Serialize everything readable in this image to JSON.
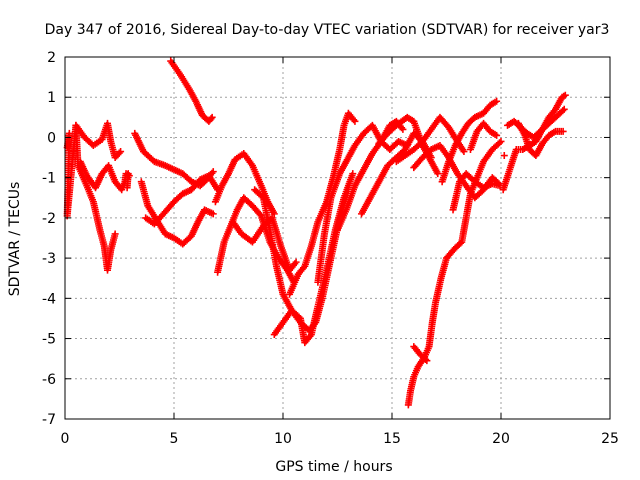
{
  "chart_data": {
    "type": "scatter",
    "title": "Day 347 of 2016, Sidereal Day-to-day VTEC variation (SDTVAR) for receiver yar3",
    "xlabel": "GPS time / hours",
    "ylabel": "SDTVAR / TECUs",
    "xlim": [
      0,
      25
    ],
    "ylim": [
      -7,
      2
    ],
    "xticks": [
      "0",
      "5",
      "10",
      "15",
      "20",
      "25"
    ],
    "yticks": [
      "-7",
      "-6",
      "-5",
      "-4",
      "-3",
      "-2",
      "-1",
      "0",
      "1",
      "2"
    ],
    "grid": true,
    "marker": "+",
    "color": "#ff0000",
    "series": [
      {
        "points": [
          [
            0.1,
            -0.25
          ],
          [
            0.2,
            0.1
          ],
          [
            0.1,
            -1.95
          ],
          [
            0.5,
            0.3
          ],
          [
            0.6,
            -0.7
          ],
          [
            1.0,
            -1.2
          ],
          [
            1.3,
            -1.6
          ],
          [
            1.6,
            -2.3
          ],
          [
            1.8,
            -2.7
          ],
          [
            1.95,
            -3.3
          ],
          [
            2.1,
            -2.8
          ],
          [
            2.3,
            -2.4
          ]
        ]
      },
      {
        "points": [
          [
            0.5,
            0.3
          ],
          [
            0.9,
            0.0
          ],
          [
            1.3,
            -0.2
          ],
          [
            1.7,
            -0.05
          ],
          [
            1.95,
            0.35
          ],
          [
            2.1,
            -0.1
          ],
          [
            2.3,
            -0.5
          ],
          [
            2.55,
            -0.35
          ]
        ]
      },
      {
        "points": [
          [
            0.7,
            -0.6
          ],
          [
            1.0,
            -0.95
          ],
          [
            1.4,
            -1.25
          ],
          [
            1.7,
            -0.9
          ],
          [
            2.0,
            -0.7
          ],
          [
            2.3,
            -1.1
          ],
          [
            2.6,
            -1.3
          ],
          [
            2.75,
            -1.1
          ],
          [
            2.8,
            -0.9
          ],
          [
            2.95,
            -0.95
          ]
        ]
      },
      {
        "points": [
          [
            3.2,
            0.1
          ],
          [
            3.6,
            -0.35
          ],
          [
            4.1,
            -0.6
          ],
          [
            4.6,
            -0.7
          ],
          [
            5.0,
            -0.8
          ],
          [
            5.4,
            -0.9
          ],
          [
            5.8,
            -1.1
          ],
          [
            6.2,
            -1.2
          ],
          [
            6.5,
            -1.05
          ],
          [
            6.8,
            -0.85
          ]
        ]
      },
      {
        "points": [
          [
            3.5,
            -1.1
          ],
          [
            3.8,
            -1.7
          ],
          [
            4.2,
            -2.05
          ],
          [
            4.6,
            -2.4
          ],
          [
            5.0,
            -2.5
          ],
          [
            5.4,
            -2.65
          ],
          [
            5.8,
            -2.45
          ],
          [
            6.1,
            -2.1
          ],
          [
            6.4,
            -1.8
          ],
          [
            6.8,
            -1.9
          ]
        ]
      },
      {
        "points": [
          [
            3.7,
            -2.0
          ],
          [
            4.1,
            -2.15
          ],
          [
            4.6,
            -1.85
          ],
          [
            5.0,
            -1.6
          ],
          [
            5.4,
            -1.4
          ],
          [
            5.8,
            -1.3
          ],
          [
            6.2,
            -1.05
          ],
          [
            6.6,
            -0.95
          ],
          [
            7.0,
            -1.3
          ]
        ]
      },
      {
        "points": [
          [
            2.85,
            -1.25
          ],
          [
            2.9,
            -0.9
          ]
        ]
      },
      {
        "points": [
          [
            4.85,
            1.9
          ],
          [
            5.3,
            1.55
          ],
          [
            5.7,
            1.2
          ],
          [
            6.0,
            0.9
          ],
          [
            6.3,
            0.55
          ],
          [
            6.6,
            0.4
          ],
          [
            6.75,
            0.5
          ]
        ]
      },
      {
        "points": [
          [
            7.0,
            -3.35
          ],
          [
            7.3,
            -2.6
          ],
          [
            7.6,
            -2.2
          ],
          [
            7.9,
            -1.8
          ],
          [
            8.2,
            -1.5
          ],
          [
            8.6,
            -1.7
          ],
          [
            9.0,
            -1.95
          ],
          [
            9.4,
            -2.6
          ],
          [
            9.8,
            -3.0
          ],
          [
            10.2,
            -3.3
          ],
          [
            10.5,
            -3.6
          ]
        ]
      },
      {
        "points": [
          [
            6.9,
            -1.6
          ],
          [
            7.2,
            -1.2
          ],
          [
            7.5,
            -0.9
          ],
          [
            7.8,
            -0.55
          ],
          [
            8.2,
            -0.4
          ],
          [
            8.6,
            -0.7
          ],
          [
            9.0,
            -1.2
          ],
          [
            9.3,
            -1.6
          ],
          [
            9.6,
            -1.9
          ]
        ]
      },
      {
        "points": [
          [
            7.7,
            -2.1
          ],
          [
            8.1,
            -2.4
          ],
          [
            8.6,
            -2.6
          ],
          [
            9.1,
            -2.2
          ],
          [
            9.5,
            -2.0
          ],
          [
            9.9,
            -2.7
          ],
          [
            10.3,
            -3.3
          ],
          [
            10.6,
            -3.1
          ]
        ]
      },
      {
        "points": [
          [
            8.7,
            -1.3
          ],
          [
            9.1,
            -1.5
          ],
          [
            9.4,
            -2.3
          ],
          [
            9.7,
            -3.2
          ],
          [
            10.0,
            -3.9
          ],
          [
            10.4,
            -4.3
          ],
          [
            10.8,
            -4.6
          ],
          [
            11.2,
            -4.8
          ],
          [
            11.5,
            -4.6
          ],
          [
            11.8,
            -4.0
          ],
          [
            12.2,
            -3.0
          ],
          [
            12.6,
            -2.0
          ],
          [
            13.0,
            -1.3
          ]
        ]
      },
      {
        "points": [
          [
            9.6,
            -4.9
          ],
          [
            10.0,
            -4.6
          ],
          [
            10.4,
            -4.3
          ],
          [
            10.8,
            -4.5
          ],
          [
            11.0,
            -5.1
          ],
          [
            11.3,
            -4.9
          ],
          [
            11.6,
            -4.2
          ],
          [
            12.0,
            -3.3
          ],
          [
            12.4,
            -2.3
          ],
          [
            12.8,
            -1.5
          ],
          [
            13.2,
            -0.9
          ]
        ]
      },
      {
        "points": [
          [
            10.3,
            -3.9
          ],
          [
            10.7,
            -3.4
          ],
          [
            11.0,
            -3.2
          ],
          [
            11.3,
            -2.7
          ],
          [
            11.6,
            -2.1
          ],
          [
            12.0,
            -1.6
          ],
          [
            12.3,
            -1.0
          ],
          [
            12.6,
            -0.3
          ],
          [
            12.8,
            0.3
          ],
          [
            13.0,
            0.6
          ],
          [
            13.3,
            0.4
          ]
        ]
      },
      {
        "points": [
          [
            11.6,
            -3.6
          ],
          [
            11.9,
            -2.4
          ],
          [
            12.2,
            -1.5
          ],
          [
            12.6,
            -0.9
          ],
          [
            12.9,
            -0.6
          ],
          [
            13.3,
            -0.2
          ],
          [
            13.7,
            0.1
          ],
          [
            14.1,
            0.3
          ],
          [
            14.5,
            -0.1
          ],
          [
            14.9,
            -0.3
          ],
          [
            15.3,
            -0.1
          ],
          [
            15.7,
            -0.2
          ]
        ]
      },
      {
        "points": [
          [
            12.5,
            -2.3
          ],
          [
            12.9,
            -1.8
          ],
          [
            13.3,
            -1.2
          ],
          [
            13.7,
            -0.8
          ],
          [
            14.1,
            -0.4
          ],
          [
            14.5,
            -0.1
          ],
          [
            14.9,
            0.3
          ],
          [
            15.2,
            0.4
          ],
          [
            15.5,
            0.2
          ]
        ]
      },
      {
        "points": [
          [
            13.6,
            -1.9
          ],
          [
            14.0,
            -1.5
          ],
          [
            14.4,
            -1.1
          ],
          [
            14.8,
            -0.7
          ],
          [
            15.2,
            -0.5
          ],
          [
            15.6,
            -0.3
          ],
          [
            16.0,
            0.1
          ],
          [
            16.4,
            -0.1
          ],
          [
            16.8,
            -0.5
          ]
        ]
      },
      {
        "points": [
          [
            14.4,
            -0.15
          ],
          [
            14.8,
            0.1
          ],
          [
            15.2,
            0.3
          ],
          [
            15.7,
            0.5
          ],
          [
            16.0,
            0.4
          ],
          [
            16.4,
            -0.2
          ],
          [
            16.8,
            -0.6
          ],
          [
            17.1,
            -0.9
          ]
        ]
      },
      {
        "points": [
          [
            15.2,
            -0.6
          ],
          [
            15.6,
            -0.45
          ],
          [
            16.0,
            -0.3
          ],
          [
            16.4,
            -0.1
          ],
          [
            16.8,
            0.2
          ],
          [
            17.2,
            0.5
          ],
          [
            17.6,
            0.25
          ],
          [
            18.0,
            -0.1
          ],
          [
            18.3,
            -0.35
          ]
        ]
      },
      {
        "points": [
          [
            16.0,
            -0.75
          ],
          [
            16.4,
            -0.5
          ],
          [
            16.8,
            -0.3
          ],
          [
            17.2,
            -0.2
          ],
          [
            17.6,
            -0.5
          ],
          [
            18.0,
            -0.9
          ],
          [
            18.4,
            -1.2
          ],
          [
            18.8,
            -1.5
          ],
          [
            19.2,
            -1.3
          ],
          [
            19.6,
            -1.0
          ],
          [
            19.9,
            -1.15
          ]
        ]
      },
      {
        "points": [
          [
            15.75,
            -6.65
          ],
          [
            15.85,
            -6.3
          ],
          [
            16.0,
            -5.95
          ],
          [
            16.2,
            -5.7
          ],
          [
            16.5,
            -5.45
          ],
          [
            16.7,
            -5.2
          ],
          [
            16.85,
            -4.6
          ],
          [
            17.0,
            -4.1
          ],
          [
            17.25,
            -3.5
          ],
          [
            17.5,
            -3.0
          ],
          [
            17.9,
            -2.75
          ],
          [
            18.2,
            -2.6
          ],
          [
            18.4,
            -2.0
          ],
          [
            18.6,
            -1.4
          ],
          [
            18.9,
            -1.0
          ],
          [
            19.2,
            -0.6
          ],
          [
            19.6,
            -0.3
          ],
          [
            20.0,
            -0.1
          ]
        ]
      },
      {
        "points": [
          [
            16.0,
            -5.2
          ],
          [
            16.3,
            -5.4
          ],
          [
            16.6,
            -5.55
          ]
        ]
      },
      {
        "points": [
          [
            17.3,
            -1.1
          ],
          [
            17.6,
            -0.6
          ],
          [
            17.9,
            -0.2
          ],
          [
            18.2,
            0.1
          ],
          [
            18.5,
            0.35
          ],
          [
            18.8,
            0.5
          ],
          [
            19.2,
            0.6
          ],
          [
            19.5,
            0.8
          ],
          [
            19.8,
            0.9
          ]
        ]
      },
      {
        "points": [
          [
            17.8,
            -1.8
          ],
          [
            18.1,
            -1.1
          ],
          [
            18.4,
            -0.9
          ],
          [
            18.8,
            -1.1
          ],
          [
            19.2,
            -1.25
          ],
          [
            19.6,
            -1.15
          ],
          [
            19.95,
            -1.2
          ]
        ]
      },
      {
        "points": [
          [
            18.6,
            -0.3
          ],
          [
            18.9,
            0.15
          ],
          [
            19.2,
            0.35
          ],
          [
            19.5,
            0.15
          ],
          [
            19.8,
            0.05
          ]
        ]
      },
      {
        "points": [
          [
            20.15,
            -0.45
          ]
        ]
      },
      {
        "points": [
          [
            20.1,
            -1.3
          ],
          [
            20.4,
            -0.8
          ],
          [
            20.7,
            -0.3
          ],
          [
            21.0,
            -0.3
          ],
          [
            21.3,
            -0.2
          ],
          [
            21.6,
            -0.1
          ],
          [
            21.9,
            0.2
          ],
          [
            22.2,
            0.5
          ],
          [
            22.5,
            0.7
          ],
          [
            22.8,
            1.0
          ],
          [
            22.95,
            1.05
          ]
        ]
      },
      {
        "points": [
          [
            20.3,
            0.3
          ],
          [
            20.6,
            0.4
          ],
          [
            20.9,
            0.25
          ],
          [
            21.2,
            0.1
          ],
          [
            21.5,
            0.0
          ],
          [
            21.8,
            0.15
          ],
          [
            22.1,
            0.3
          ],
          [
            22.4,
            0.45
          ],
          [
            22.7,
            0.6
          ],
          [
            22.9,
            0.7
          ]
        ]
      },
      {
        "points": [
          [
            20.8,
            0.35
          ],
          [
            21.1,
            0.05
          ],
          [
            21.3,
            -0.3
          ],
          [
            21.6,
            -0.45
          ],
          [
            21.9,
            -0.15
          ],
          [
            22.2,
            0.05
          ],
          [
            22.5,
            0.15
          ],
          [
            22.85,
            0.15
          ]
        ]
      }
    ]
  }
}
